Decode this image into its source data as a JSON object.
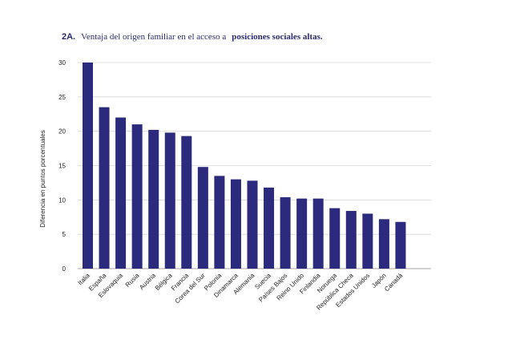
{
  "chart_data": {
    "type": "bar",
    "title_prefix": "2A.",
    "title_regular": "Ventaja del origen familiar en el acceso a",
    "title_bold": "posiciones sociales altas.",
    "ylabel": "Diferencia en puntos porcentuales",
    "xlabel": "",
    "ylim": [
      0,
      30
    ],
    "yticks": [
      0,
      5,
      10,
      15,
      20,
      25,
      30
    ],
    "grid": true,
    "bar_color": "#2c2a7c",
    "categories": [
      "Italia",
      "España",
      "Eslovaquia",
      "Rusia",
      "Austria",
      "Bélgica",
      "Francia",
      "Corea del Sur",
      "Polonia",
      "Dinamarca",
      "Alemania",
      "Suecia",
      "Países Bajos",
      "Reino Unido",
      "Finlandia",
      "Noruega",
      "República Checa",
      "Estados Unidos",
      "Japón",
      "Canadá"
    ],
    "values": [
      30,
      23.5,
      22,
      21,
      20.2,
      19.8,
      19.3,
      14.8,
      13.5,
      13,
      12.8,
      11.8,
      10.4,
      10.2,
      10.2,
      8.8,
      8.4,
      8,
      7.2,
      6.8
    ]
  }
}
